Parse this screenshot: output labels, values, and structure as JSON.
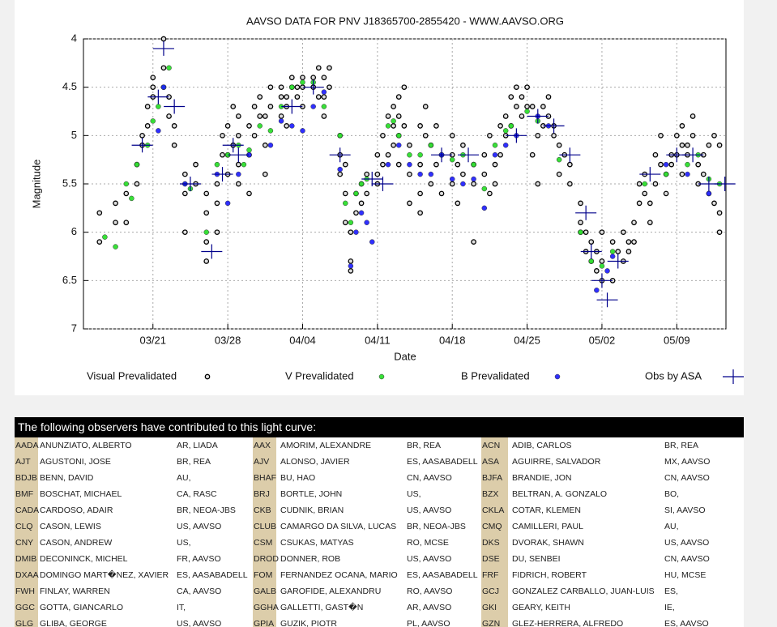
{
  "chart_data": {
    "type": "scatter",
    "title": "AAVSO DATA FOR PNV J18365700-2855420 - WWW.AAVSO.ORG",
    "xlabel": "Date",
    "ylabel": "Magnitude",
    "xlim": [
      73.5,
      133.6
    ],
    "ylim": [
      7,
      4
    ],
    "xticks": [
      {
        "value": 80,
        "label": "03/21"
      },
      {
        "value": 87,
        "label": "03/28"
      },
      {
        "value": 94,
        "label": "04/04"
      },
      {
        "value": 101,
        "label": "04/11"
      },
      {
        "value": 108,
        "label": "04/18"
      },
      {
        "value": 115,
        "label": "04/25"
      },
      {
        "value": 122,
        "label": "05/02"
      },
      {
        "value": 129,
        "label": "05/09"
      }
    ],
    "yticks": [
      4,
      4.5,
      5,
      5.5,
      6,
      6.5,
      7
    ],
    "grid": true,
    "series": [
      {
        "name": "Visual Prevalidated",
        "color": "#000000",
        "marker": "ring",
        "x": [
          75,
          75,
          76.5,
          76.5,
          77.5,
          77.5,
          78.5,
          78.5,
          79,
          79,
          79.5,
          79.5,
          80,
          80,
          80,
          81,
          81,
          81,
          81.5,
          81.5,
          82,
          82,
          83,
          83,
          83,
          84,
          84,
          85,
          85,
          85,
          85,
          86,
          86,
          86,
          86.5,
          86.5,
          87,
          87,
          87,
          87.5,
          87.5,
          88,
          88,
          88,
          88,
          89,
          89,
          89,
          89.5,
          89.5,
          90,
          90,
          90.5,
          90.5,
          90.5,
          91,
          91,
          92,
          92,
          92,
          92.5,
          92.5,
          92.5,
          93,
          93,
          93.5,
          93.5,
          94,
          94,
          94,
          95,
          95,
          95.5,
          95.5,
          96,
          96,
          96,
          96.5,
          96.5,
          97.5,
          97.5,
          97.5,
          98,
          98,
          98,
          98.5,
          98.5,
          98.5,
          99,
          99,
          99.5,
          99.5,
          100,
          100,
          101,
          101,
          101,
          101.5,
          101.5,
          102,
          102,
          102.5,
          102.5,
          102.5,
          103,
          103,
          103,
          103,
          103.5,
          103.5,
          104,
          104,
          104,
          105,
          105,
          105,
          105,
          105.5,
          105.5,
          106,
          106,
          106.5,
          106.5,
          107,
          107,
          108,
          108,
          108,
          108.5,
          108.5,
          109,
          109,
          110,
          110,
          110,
          111,
          111,
          111.5,
          111.5,
          112,
          112,
          112.5,
          112.5,
          113,
          113,
          113.5,
          113.5,
          114,
          114,
          114.5,
          114.5,
          115,
          115,
          115.5,
          115.5,
          116,
          116,
          116.5,
          116.5,
          117,
          117,
          117.5,
          117.5,
          118,
          118,
          118.5,
          119,
          119,
          120,
          120,
          120,
          120.5,
          120.5,
          121,
          121,
          121.5,
          121.5,
          122,
          122,
          122,
          123,
          123,
          123.5,
          124,
          124,
          124.5,
          124.5,
          125,
          125,
          125.5,
          125.5,
          126,
          126,
          126.5,
          126.5,
          127,
          127,
          127.5,
          127.5,
          128,
          128,
          128.5,
          128.5,
          129,
          129,
          129.5,
          129.5,
          129.5,
          130,
          130,
          130.5,
          130.5,
          131,
          131,
          131.5,
          131.5,
          132,
          132,
          132.5,
          132.5,
          133,
          133,
          133
        ],
        "values": [
          5.8,
          6.1,
          5.9,
          5.7,
          5.6,
          5.9,
          5.3,
          5.5,
          5.1,
          5.0,
          4.9,
          4.7,
          4.6,
          4.5,
          4.4,
          4.0,
          4.3,
          4.5,
          4.6,
          4.8,
          4.9,
          5.1,
          5.4,
          5.6,
          6.0,
          5.3,
          5.5,
          5.6,
          5.8,
          6.1,
          6.3,
          5.7,
          5.5,
          6.0,
          5.2,
          5.0,
          5.2,
          4.9,
          5.4,
          4.7,
          5.1,
          4.8,
          5.0,
          5.3,
          5.5,
          4.9,
          5.2,
          5.6,
          4.7,
          5.0,
          4.6,
          4.8,
          4.8,
          5.1,
          5.4,
          4.7,
          4.5,
          4.5,
          4.6,
          4.8,
          4.6,
          4.9,
          4.7,
          4.4,
          4.5,
          4.6,
          4.5,
          4.4,
          4.5,
          4.7,
          4.5,
          4.4,
          4.6,
          4.3,
          4.4,
          4.6,
          4.8,
          4.3,
          4.5,
          5.0,
          5.2,
          5.4,
          5.3,
          5.6,
          5.9,
          6.3,
          6.0,
          6.4,
          5.8,
          5.6,
          5.5,
          5.7,
          5.6,
          5.4,
          5.2,
          5.4,
          5.5,
          5.0,
          5.3,
          4.8,
          5.2,
          4.7,
          4.9,
          5.1,
          4.6,
          4.8,
          5.0,
          5.3,
          4.5,
          4.9,
          5.1,
          5.4,
          5.7,
          4.9,
          5.3,
          5.6,
          5.8,
          4.7,
          5.0,
          5.1,
          5.5,
          4.9,
          5.3,
          5.2,
          5.6,
          5.0,
          5.2,
          5.5,
          5.3,
          5.7,
          5.4,
          5.1,
          6.1,
          5.3,
          5.5,
          5.2,
          5.4,
          5.0,
          5.6,
          5.3,
          5.5,
          4.9,
          5.2,
          4.8,
          5.0,
          4.6,
          4.9,
          4.5,
          4.7,
          4.6,
          4.8,
          4.5,
          4.7,
          4.7,
          5.2,
          5.0,
          5.5,
          4.7,
          4.9,
          4.6,
          4.8,
          4.9,
          5.0,
          5.1,
          5.4,
          5.2,
          5.3,
          5.5,
          5.7,
          5.9,
          6.0,
          6.2,
          6.0,
          6.3,
          6.1,
          6.2,
          6.4,
          6.0,
          6.3,
          6.5,
          6.1,
          6.5,
          6.2,
          6.3,
          6.0,
          6.1,
          6.2,
          6.1,
          5.9,
          5.5,
          5.7,
          5.4,
          5.6,
          5.7,
          5.9,
          5.2,
          5.5,
          5.0,
          5.3,
          5.4,
          5.6,
          5.2,
          5.3,
          5.0,
          5.2,
          4.9,
          5.1,
          5.4,
          5.1,
          5.2,
          4.8,
          5.0,
          5.3,
          5.5,
          5.2,
          5.4,
          5.1,
          5.6,
          5.0,
          5.7,
          5.1,
          5.8,
          6.0
        ]
      },
      {
        "name": "V Prevalidated",
        "color": "#22dd22",
        "marker": "dot",
        "x": [
          75.5,
          76.5,
          77.5,
          78,
          78.5,
          79.5,
          80,
          80.5,
          81,
          81.5,
          83,
          83.5,
          85,
          86,
          87,
          88,
          88.5,
          89,
          90,
          91,
          92,
          93,
          94,
          95,
          96,
          97.5,
          98,
          98.5,
          99,
          99.5,
          100,
          102,
          102.5,
          103,
          104,
          105,
          106,
          107,
          108,
          109,
          110,
          111,
          112,
          113,
          113.5,
          115,
          116,
          118,
          120,
          121,
          122,
          123,
          126,
          128,
          130,
          131,
          132,
          133
        ],
        "values": [
          6.05,
          6.15,
          5.5,
          5.65,
          5.3,
          5.1,
          4.85,
          4.7,
          4.5,
          4.3,
          5.5,
          5.55,
          6.0,
          5.3,
          5.2,
          5.1,
          5.3,
          5.15,
          4.9,
          4.95,
          4.7,
          4.5,
          4.45,
          4.45,
          4.7,
          5.0,
          5.7,
          5.9,
          5.6,
          5.5,
          5.45,
          4.9,
          4.85,
          5.0,
          5.2,
          5.2,
          5.1,
          5.2,
          5.25,
          5.2,
          5.3,
          5.55,
          5.1,
          4.95,
          4.9,
          4.75,
          4.85,
          5.25,
          6.0,
          6.3,
          6.35,
          6.2,
          5.5,
          5.4,
          5.3,
          5.2,
          5.45,
          5.5
        ]
      },
      {
        "name": "B Prevalidated",
        "color": "#1a1aff",
        "marker": "dot",
        "x": [
          80.5,
          81,
          83,
          86,
          87,
          88,
          89,
          91,
          92,
          93,
          94,
          95,
          96,
          97.5,
          98.5,
          99,
          99.5,
          100,
          100.5,
          102,
          103,
          104,
          105,
          106,
          107,
          108,
          109,
          110,
          111,
          112,
          113,
          114,
          116,
          117,
          121.5,
          122.5,
          123,
          128,
          130,
          132
        ],
        "values": [
          4.95,
          4.5,
          5.5,
          5.4,
          5.7,
          5.4,
          5.2,
          5.1,
          4.85,
          4.9,
          4.95,
          4.7,
          4.55,
          5.35,
          6.35,
          6.0,
          5.8,
          5.9,
          6.1,
          5.3,
          5.1,
          5.3,
          5.4,
          5.4,
          5.2,
          5.45,
          5.5,
          5.45,
          5.75,
          5.2,
          5.1,
          5.0,
          4.8,
          4.9,
          6.6,
          6.4,
          6.25,
          5.3,
          5.4,
          5.6
        ]
      },
      {
        "name": "Obs by ASA",
        "color": "#00008b",
        "marker": "cross",
        "x": [
          79,
          80.5,
          81,
          82,
          83.5,
          85.5,
          86.5,
          87.5,
          88,
          93,
          95,
          97.5,
          100.5,
          101.5,
          107,
          109.5,
          114,
          116,
          117.5,
          119,
          120.5,
          121,
          122,
          122.5,
          123.5,
          126.5,
          129,
          130.5,
          132,
          133.5
        ],
        "values": [
          5.1,
          4.6,
          4.1,
          4.7,
          5.5,
          6.2,
          5.4,
          5.1,
          5.2,
          4.7,
          4.5,
          5.2,
          5.45,
          5.5,
          5.2,
          5.2,
          5.0,
          4.8,
          4.9,
          5.2,
          5.8,
          6.2,
          6.5,
          6.7,
          6.3,
          5.4,
          5.2,
          5.2,
          5.5,
          5.5
        ]
      }
    ]
  },
  "table": {
    "header": "The following observers have contributed to this light curve:",
    "rows": [
      [
        "AADA",
        "ANUNZIATO, ALBERTO",
        "AR, LIADA",
        "AAX",
        "AMORIM, ALEXANDRE",
        "BR, REA",
        "ACN",
        "ADIB, CARLOS",
        "BR, REA"
      ],
      [
        "AJT",
        "AGUSTONI, JOSE",
        "BR, REA",
        "AJV",
        "ALONSO, JAVIER",
        "ES, AASABADELL",
        "ASA",
        "AGUIRRE, SALVADOR",
        "MX, AAVSO"
      ],
      [
        "BDJB",
        "BENN, DAVID",
        "AU,",
        "BHAF",
        "BU, HAO",
        "CN, AAVSO",
        "BJFA",
        "BRANDIE, JON",
        "CN, AAVSO"
      ],
      [
        "BMF",
        "BOSCHAT, MICHAEL",
        "CA, RASC",
        "BRJ",
        "BORTLE, JOHN",
        "US,",
        "BZX",
        "BELTRAN, A. GONZALO",
        "BO,"
      ],
      [
        "CADA",
        "CARDOSO, ADAIR",
        "BR, NEOA-JBS",
        "CKB",
        "CUDNIK, BRIAN",
        "US, AAVSO",
        "CKLA",
        "COTAR, KLEMEN",
        "SI, AAVSO"
      ],
      [
        "CLQ",
        "CASON, LEWIS",
        "US, AAVSO",
        "CLUB",
        "CAMARGO DA SILVA, LUCAS",
        "BR, NEOA-JBS",
        "CMQ",
        "CAMILLERI, PAUL",
        "AU,"
      ],
      [
        "CNY",
        "CASON, ANDREW",
        "US,",
        "CSM",
        "CSUKAS, MATYAS",
        "RO, MCSE",
        "DKS",
        "DVORAK, SHAWN",
        "US, AAVSO"
      ],
      [
        "DMIB",
        "DECONINCK, MICHEL",
        "FR, AAVSO",
        "DROD",
        "DONNER, ROB",
        "US, AAVSO",
        "DSE",
        "DU, SENBEI",
        "CN, AAVSO"
      ],
      [
        "DXAA",
        "DOMINGO MART�NEZ, XAVIER",
        "ES, AASABADELL",
        "FOM",
        "FERNANDEZ OCANA, MARIO",
        "ES, AASABADELL",
        "FRF",
        "FIDRICH, ROBERT",
        "HU, MCSE"
      ],
      [
        "FWH",
        "FINLAY, WARREN",
        "CA, AAVSO",
        "GALB",
        "GAROFIDE, ALEXANDRU",
        "RO, AAVSO",
        "GCJ",
        "GONZALEZ CARBALLO, JUAN-LUIS",
        "ES,"
      ],
      [
        "GGC",
        "GOTTA, GIANCARLO",
        "IT,",
        "GGHA",
        "GALLETTI, GAST�N",
        "AR, AAVSO",
        "GKI",
        "GEARY, KEITH",
        "IE,"
      ],
      [
        "GLG",
        "GLIBA, GEORGE",
        "US, AAVSO",
        "GPIA",
        "GUZIK, PIOTR",
        "PL, AAVSO",
        "GZN",
        "GLEZ-HERRERA, ALFREDO",
        "ES, AAVSO"
      ]
    ]
  }
}
